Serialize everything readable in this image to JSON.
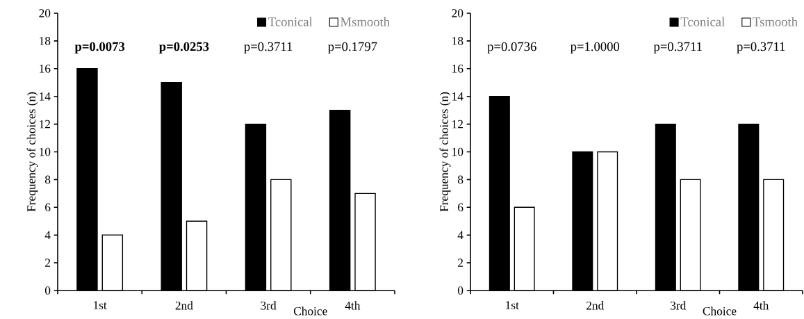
{
  "chart_data": [
    {
      "type": "bar",
      "ylabel": "Frequency of choices (n)",
      "xlabel": "Choice",
      "categories": [
        "1st",
        "2nd",
        "3rd",
        "4th"
      ],
      "series": [
        {
          "name": "Tconical",
          "color": "#000000",
          "values": [
            16,
            15,
            12,
            13
          ]
        },
        {
          "name": "Msmooth",
          "color": "#ffffff",
          "values": [
            4,
            5,
            8,
            7
          ]
        }
      ],
      "ylim": [
        0,
        20
      ],
      "yticks": [
        0,
        2,
        4,
        6,
        8,
        10,
        12,
        14,
        16,
        18,
        20
      ],
      "legend": "top right",
      "annotations": [
        "**p=0.0073**",
        "**p=0.0253**",
        "p=0.3711",
        "p=0.1797"
      ]
    },
    {
      "type": "bar",
      "ylabel": "Frequency of choices (n)",
      "xlabel": "Choice",
      "categories": [
        "1st",
        "2nd",
        "3rd",
        "4th"
      ],
      "series": [
        {
          "name": "Tconical",
          "color": "#000000",
          "values": [
            14,
            10,
            12,
            12
          ]
        },
        {
          "name": "Tsmooth",
          "color": "#ffffff",
          "values": [
            6,
            10,
            8,
            8
          ]
        }
      ],
      "ylim": [
        0,
        20
      ],
      "yticks": [
        0,
        2,
        4,
        6,
        8,
        10,
        12,
        14,
        16,
        18,
        20
      ],
      "legend": "top right",
      "annotations": [
        "p=0.0736",
        "p=1.0000",
        "p=0.3711",
        "p=0.3711"
      ]
    }
  ]
}
